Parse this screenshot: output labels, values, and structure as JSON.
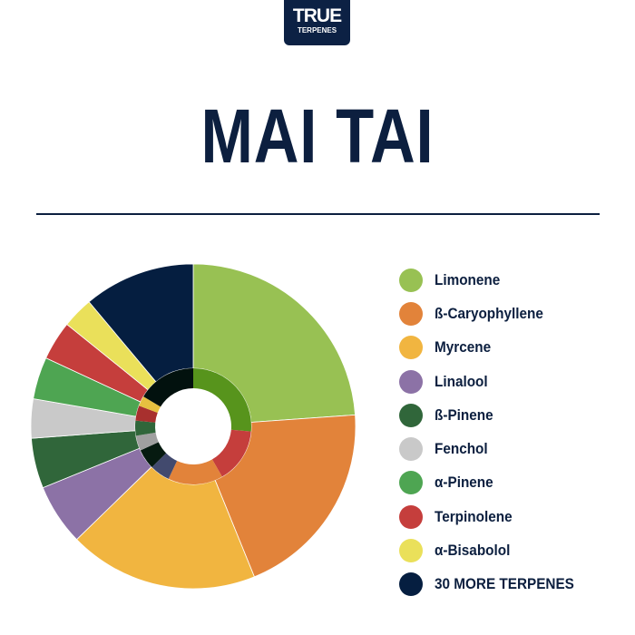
{
  "logo": {
    "line1": "TRUE",
    "line2": "TERPENES"
  },
  "title": "MAI TAI",
  "chart_data": {
    "type": "pie",
    "style": "donut with inner ring",
    "legend_placement": "right",
    "categories": [
      "Limonene",
      "ß-Caryophyllene",
      "Myrcene",
      "Linalool",
      "ß-Pinene",
      "Fenchol",
      "α-Pinene",
      "Terpinolene",
      "α-Bisabolol",
      "30 MORE TERPENES"
    ],
    "values": [
      23.9,
      20.0,
      18.9,
      6.1,
      5.0,
      3.9,
      4.2,
      3.9,
      3.1,
      11.1
    ],
    "colors": [
      "#98c153",
      "#e2833a",
      "#f1b540",
      "#8c72a6",
      "#30663a",
      "#c9c9c9",
      "#4ea552",
      "#c53e3c",
      "#eae05a",
      "#051e40"
    ],
    "inner_ring": {
      "values": [
        26.4,
        15.3,
        15.3,
        5.6,
        5.6,
        4.2,
        4.2,
        4.2,
        2.8,
        16.4
      ],
      "colors": [
        "#57941c",
        "#c53e3c",
        "#e2833a",
        "#424a6e",
        "#061a10",
        "#a0a0a0",
        "#30663a",
        "#a8302e",
        "#e6c040",
        "#02110e"
      ]
    }
  }
}
